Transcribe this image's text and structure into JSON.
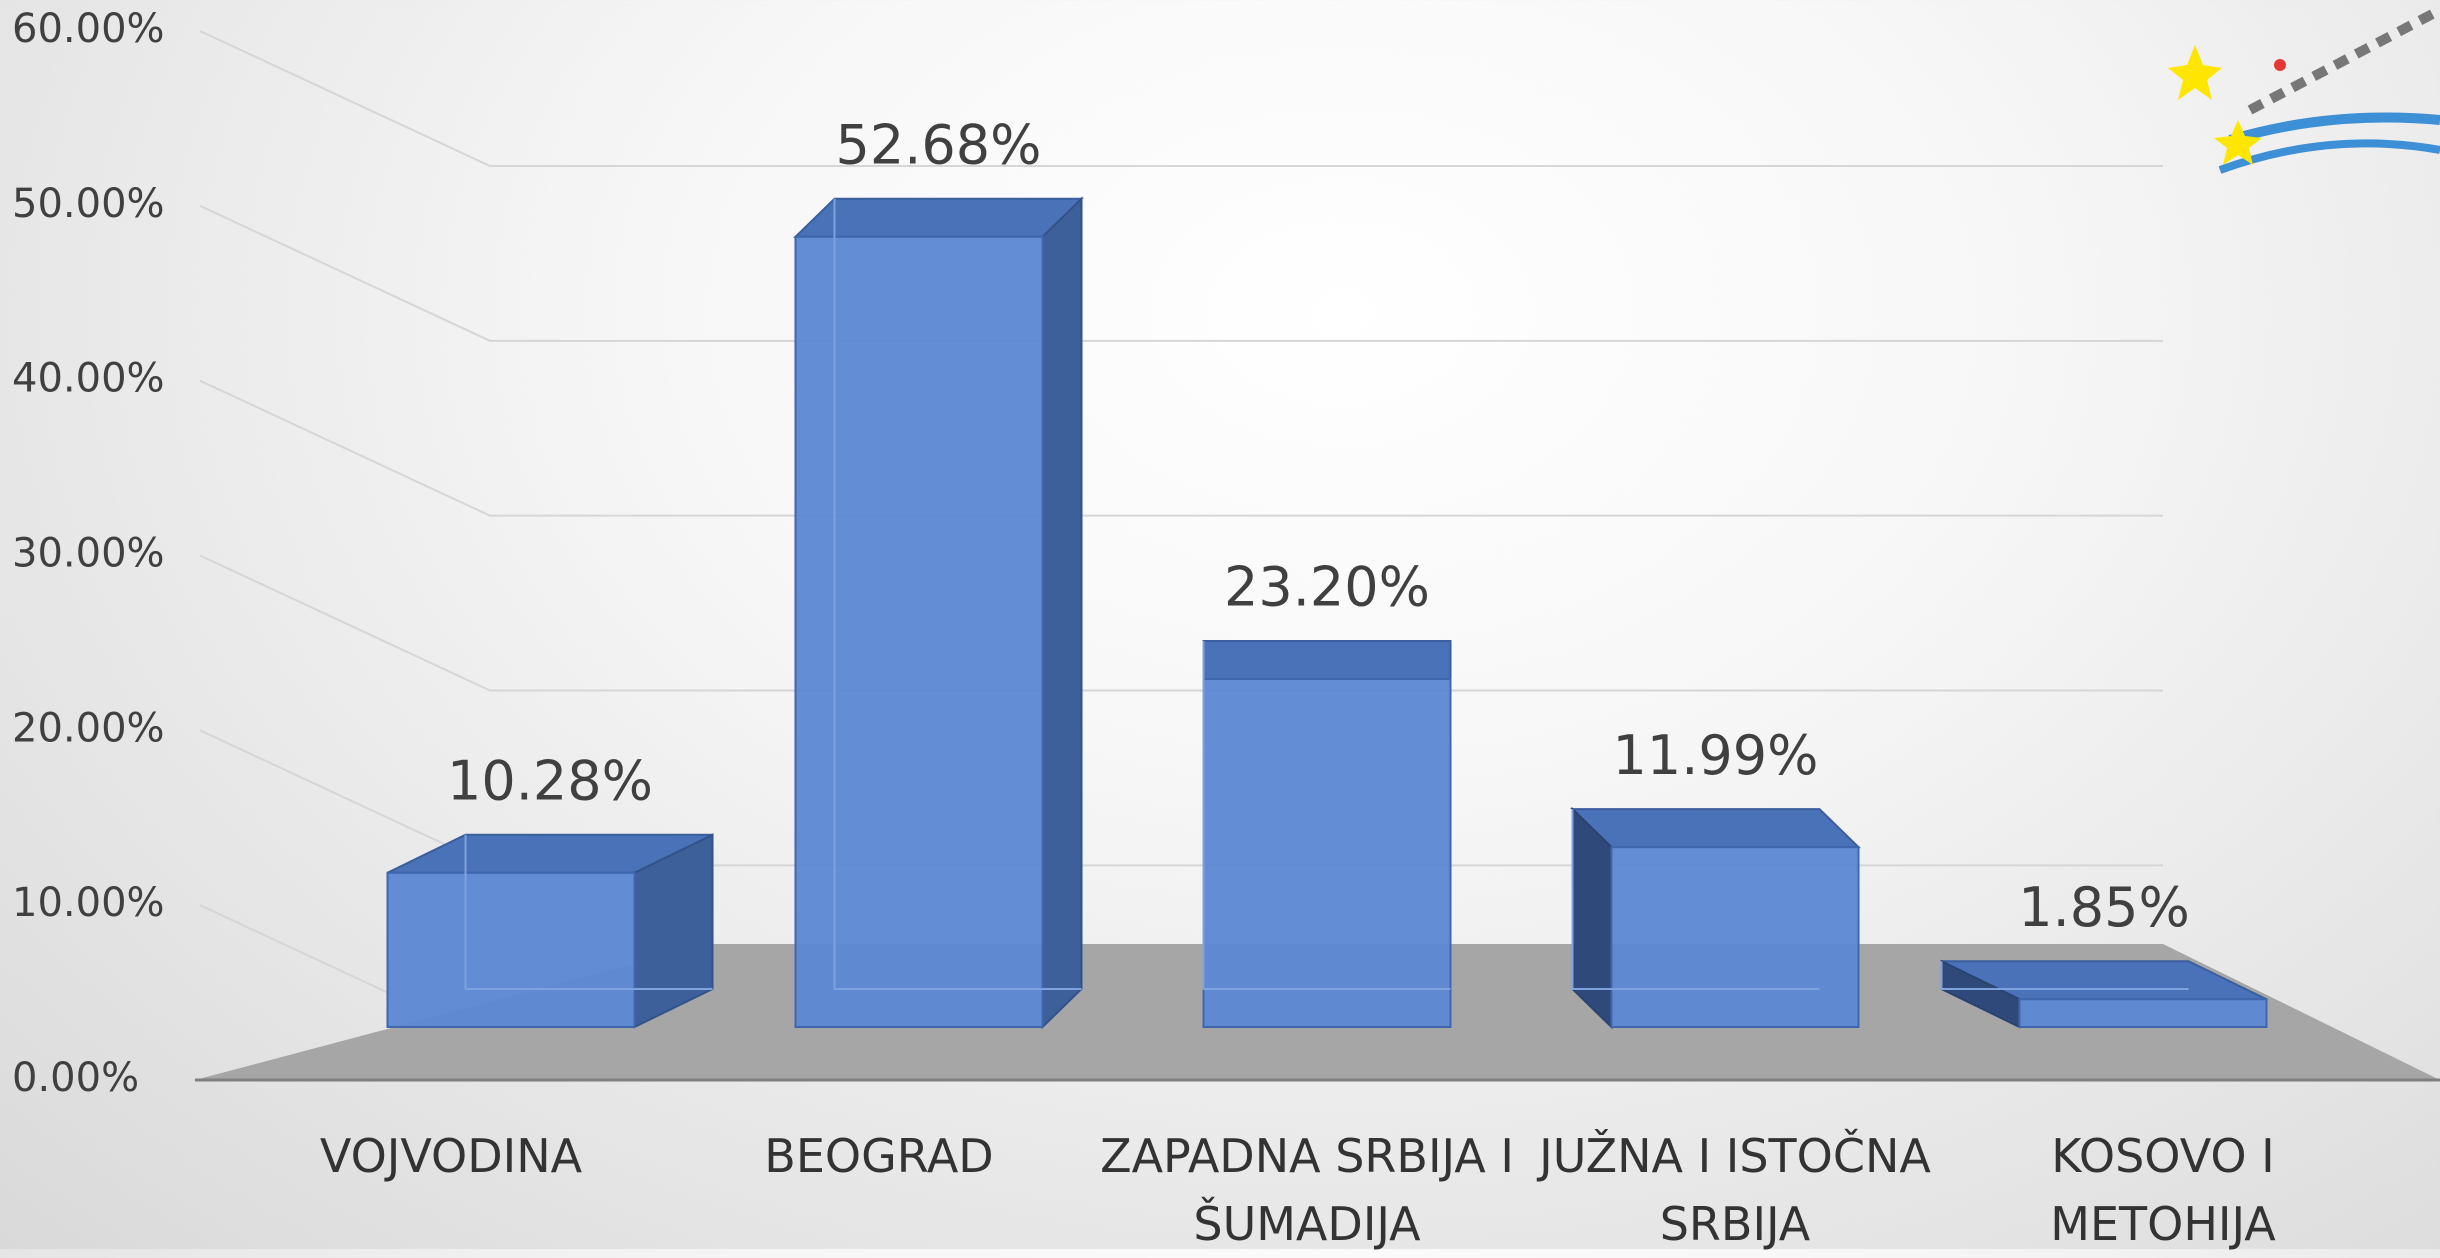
{
  "chart_data": {
    "type": "bar3d",
    "categories": [
      "VOJVODINA",
      "BEOGRAD",
      "ZAPADNA SRBIJA I ŠUMADIJA",
      "JUŽNA I ISTOČNA SRBIJA",
      "KOSOVO I METOHIJA"
    ],
    "values": [
      10.28,
      52.68,
      23.2,
      11.99,
      1.85
    ],
    "value_labels": [
      "10.28%",
      "52.68%",
      "23.20%",
      "11.99%",
      "1.85%"
    ],
    "color": "#5b87d2",
    "ylim": [
      0,
      60
    ],
    "yticks": [
      {
        "value": 0,
        "label": "0.00%"
      },
      {
        "value": 10,
        "label": "10.00%"
      },
      {
        "value": 20,
        "label": "20.00%"
      },
      {
        "value": 30,
        "label": "30.00%"
      },
      {
        "value": 40,
        "label": "40.00%"
      },
      {
        "value": 50,
        "label": "50.00%"
      },
      {
        "value": 60,
        "label": "60.00%"
      }
    ],
    "grid": true
  }
}
